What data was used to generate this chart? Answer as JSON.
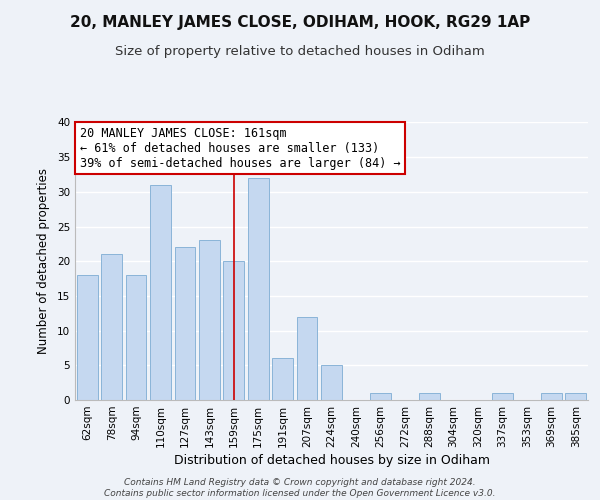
{
  "title1": "20, MANLEY JAMES CLOSE, ODIHAM, HOOK, RG29 1AP",
  "title2": "Size of property relative to detached houses in Odiham",
  "xlabel": "Distribution of detached houses by size in Odiham",
  "ylabel": "Number of detached properties",
  "categories": [
    "62sqm",
    "78sqm",
    "94sqm",
    "110sqm",
    "127sqm",
    "143sqm",
    "159sqm",
    "175sqm",
    "191sqm",
    "207sqm",
    "224sqm",
    "240sqm",
    "256sqm",
    "272sqm",
    "288sqm",
    "304sqm",
    "320sqm",
    "337sqm",
    "353sqm",
    "369sqm",
    "385sqm"
  ],
  "values": [
    18,
    21,
    18,
    31,
    22,
    23,
    20,
    32,
    6,
    12,
    5,
    0,
    1,
    0,
    1,
    0,
    0,
    1,
    0,
    1,
    1
  ],
  "bar_color": "#c5d8f0",
  "bar_edge_color": "#8ab4d8",
  "highlight_index": 6,
  "highlight_line_color": "#cc0000",
  "ylim": [
    0,
    40
  ],
  "yticks": [
    0,
    5,
    10,
    15,
    20,
    25,
    30,
    35,
    40
  ],
  "ann_line1": "20 MANLEY JAMES CLOSE: 161sqm",
  "ann_line2": "← 61% of detached houses are smaller (133)",
  "ann_line3": "39% of semi-detached houses are larger (84) →",
  "footer_text": "Contains HM Land Registry data © Crown copyright and database right 2024.\nContains public sector information licensed under the Open Government Licence v3.0.",
  "background_color": "#eef2f8",
  "plot_background_color": "#eef2f8",
  "grid_color": "#ffffff",
  "title1_fontsize": 11,
  "title2_fontsize": 9.5,
  "xlabel_fontsize": 9,
  "ylabel_fontsize": 8.5,
  "tick_fontsize": 7.5,
  "annotation_fontsize": 8.5,
  "footer_fontsize": 6.5
}
